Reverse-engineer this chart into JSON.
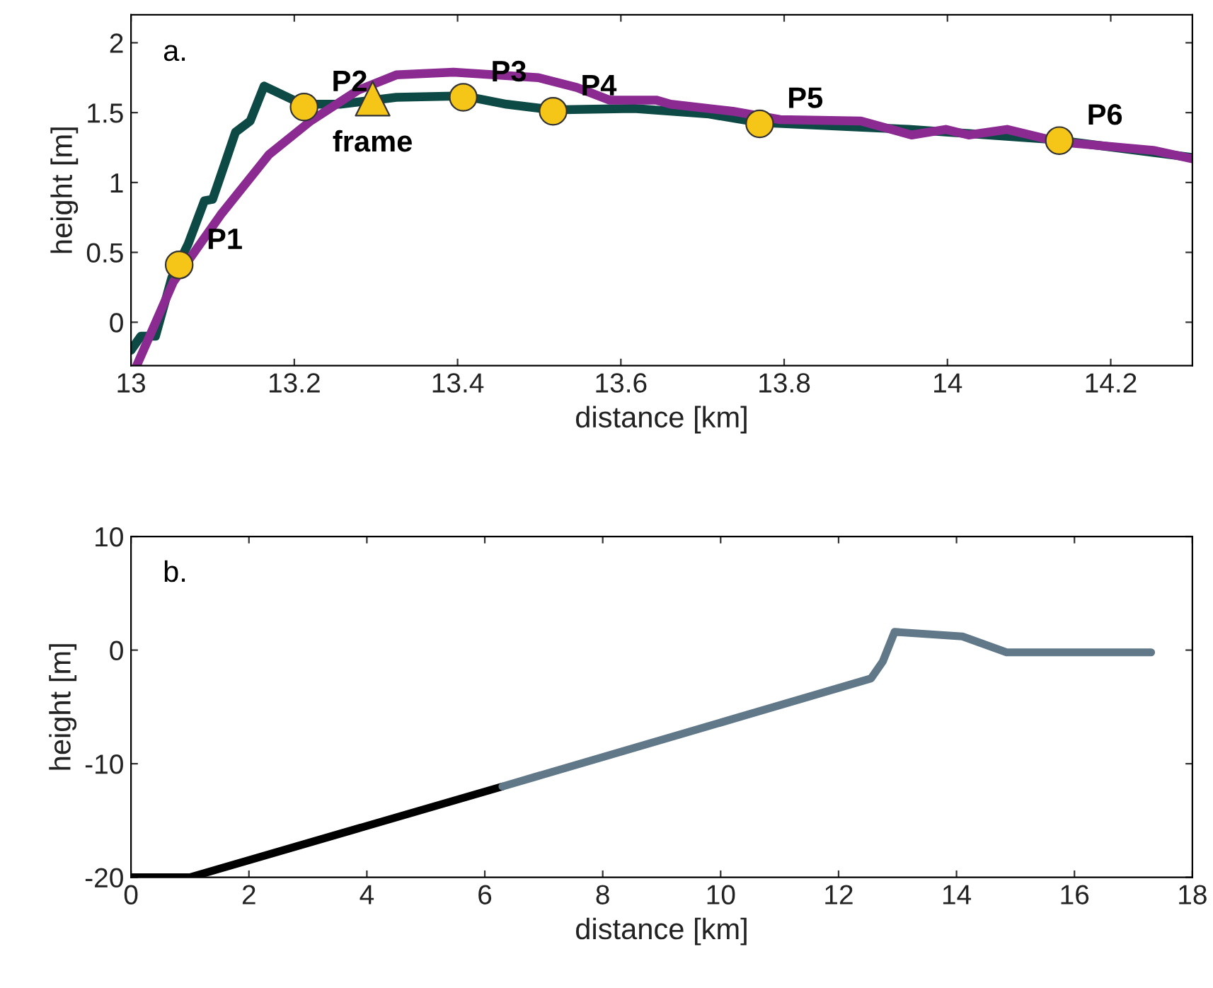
{
  "chart_data": [
    {
      "type": "line",
      "xlabel": "distance [km]",
      "ylabel": "height [m]",
      "xlim": [
        13,
        14.3
      ],
      "ylim": [
        -0.31,
        2.2
      ],
      "xticks": [
        13,
        13.2,
        13.4,
        13.6,
        13.8,
        14,
        14.2
      ],
      "yticks": [
        0,
        0.5,
        1,
        1.5,
        2
      ],
      "grid": false,
      "series": [
        {
          "color": "#0e4a45",
          "marker": "none",
          "x": [
            13.0,
            13.012,
            13.03,
            13.05,
            13.07,
            13.09,
            13.1,
            13.117,
            13.128,
            13.146,
            13.163,
            13.174,
            13.21,
            13.256,
            13.325,
            13.407,
            13.46,
            13.517,
            13.616,
            13.708,
            13.77,
            13.952,
            14.125,
            14.299
          ],
          "values": [
            -0.2,
            -0.1,
            -0.1,
            0.32,
            0.56,
            0.87,
            0.88,
            1.17,
            1.36,
            1.44,
            1.69,
            1.66,
            1.56,
            1.56,
            1.61,
            1.62,
            1.56,
            1.52,
            1.53,
            1.49,
            1.43,
            1.38,
            1.31,
            1.18
          ]
        },
        {
          "color": "#8b2b92",
          "marker": "none",
          "x": [
            13.007,
            13.052,
            13.11,
            13.169,
            13.22,
            13.278,
            13.325,
            13.395,
            13.499,
            13.546,
            13.586,
            13.643,
            13.661,
            13.737,
            13.795,
            13.894,
            13.956,
            13.998,
            14.026,
            14.073,
            14.137,
            14.252,
            14.3
          ],
          "values": [
            -0.31,
            0.29,
            0.77,
            1.2,
            1.44,
            1.66,
            1.77,
            1.79,
            1.75,
            1.68,
            1.59,
            1.59,
            1.56,
            1.51,
            1.45,
            1.44,
            1.34,
            1.38,
            1.34,
            1.38,
            1.29,
            1.23,
            1.17
          ]
        },
        {
          "type": "scatter",
          "color": "#f5c518",
          "marker": "circle",
          "x": [
            13.059,
            13.212,
            13.407,
            13.517,
            13.77,
            14.137
          ],
          "values": [
            0.41,
            1.54,
            1.61,
            1.51,
            1.42,
            1.3
          ]
        },
        {
          "type": "scatter",
          "color": "#f5c518",
          "marker": "triangle",
          "x": [
            13.296
          ],
          "values": [
            1.6
          ]
        }
      ],
      "annotations": [
        "a.",
        {
          "text": "P1",
          "x": 13.059,
          "y": 0.41
        },
        {
          "text": "P2",
          "x": 13.212,
          "y": 1.54
        },
        {
          "text": "frame",
          "x": 13.296,
          "y": 1.6
        },
        {
          "text": "P3",
          "x": 13.407,
          "y": 1.61
        },
        {
          "text": "P4",
          "x": 13.517,
          "y": 1.51
        },
        {
          "text": "P5",
          "x": 13.77,
          "y": 1.42
        },
        {
          "text": "P6",
          "x": 14.137,
          "y": 1.3
        }
      ]
    },
    {
      "type": "line",
      "xlabel": "distance [km]",
      "ylabel": "height [m]",
      "xlim": [
        0,
        18
      ],
      "ylim": [
        -20,
        10
      ],
      "xticks": [
        0,
        2,
        4,
        6,
        8,
        10,
        12,
        14,
        16,
        18
      ],
      "yticks": [
        -20,
        -10,
        0,
        10
      ],
      "grid": false,
      "series": [
        {
          "color": "#000000",
          "marker": "none",
          "x": [
            0,
            1.0,
            6.3
          ],
          "values": [
            -20,
            -20,
            -12.0
          ]
        },
        {
          "color": "#607888",
          "marker": "none",
          "x": [
            6.3,
            12.55,
            12.75,
            12.95,
            14.1,
            14.85,
            17.3
          ],
          "values": [
            -12.0,
            -2.5,
            -1.0,
            1.6,
            1.2,
            -0.2,
            -0.2
          ]
        }
      ],
      "annotations": [
        "b."
      ]
    }
  ]
}
